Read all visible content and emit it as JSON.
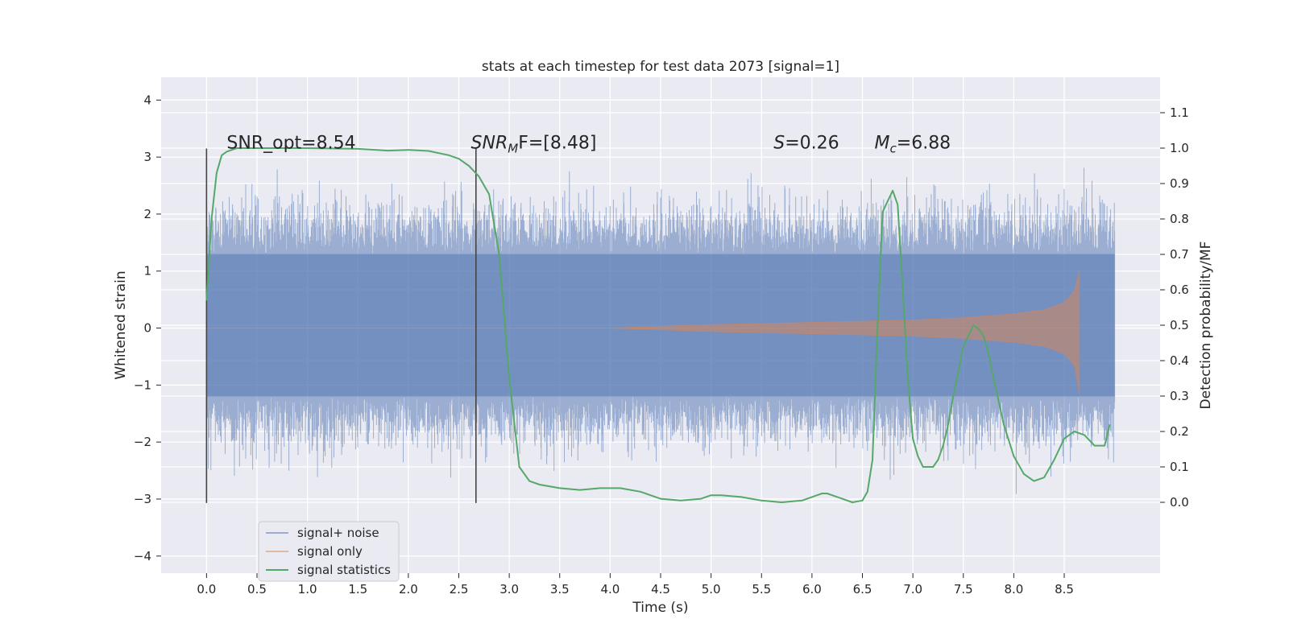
{
  "chart_data": {
    "type": "line",
    "title": "stats at each timestep for test data 2073 [signal=1]",
    "xlabel": "Time (s)",
    "ylabel_left": "Whitened strain",
    "ylabel_right": "Detection probability/MF",
    "xlim": [
      -0.45,
      9.45
    ],
    "ylim_left": [
      -4.3,
      4.4
    ],
    "ylim_right": [
      -0.2,
      1.2
    ],
    "xticks": [
      0.0,
      0.5,
      1.0,
      1.5,
      2.0,
      2.5,
      3.0,
      3.5,
      4.0,
      4.5,
      5.0,
      5.5,
      6.0,
      6.5,
      7.0,
      7.5,
      8.0,
      8.5
    ],
    "xtick_labels": [
      "0.0",
      "0.5",
      "1.0",
      "1.5",
      "2.0",
      "2.5",
      "3.0",
      "3.5",
      "4.0",
      "4.5",
      "5.0",
      "5.5",
      "6.0",
      "6.5",
      "7.0",
      "7.5",
      "8.0",
      "8.5"
    ],
    "yticks_left": [
      -4,
      -3,
      -2,
      -1,
      0,
      1,
      2,
      3,
      4
    ],
    "ytick_labels_left": [
      "−4",
      "−3",
      "−2",
      "−1",
      "0",
      "1",
      "2",
      "3",
      "4"
    ],
    "yticks_right": [
      0.0,
      0.1,
      0.2,
      0.3,
      0.4,
      0.5,
      0.6,
      0.7,
      0.8,
      0.9,
      1.0,
      1.1
    ],
    "ytick_labels_right": [
      "0.0",
      "0.1",
      "0.2",
      "0.3",
      "0.4",
      "0.5",
      "0.6",
      "0.7",
      "0.8",
      "0.9",
      "1.0",
      "1.1"
    ],
    "grid": true,
    "legend_position": "lower-left",
    "series": [
      {
        "name": "signal+ noise",
        "color": "#4c72b0",
        "axis": "left",
        "t_range": [
          0.0,
          9.0
        ],
        "envelope": {
          "core_min": -1.2,
          "core_max": 1.3,
          "max": 4.0,
          "min": -3.9
        }
      },
      {
        "name": "signal only",
        "color": "#dd8452",
        "axis": "left",
        "t_range": [
          0.0,
          8.65
        ],
        "envelope": {
          "t": [
            0.0,
            4.0,
            5.0,
            6.0,
            7.0,
            7.5,
            8.0,
            8.3,
            8.5,
            8.6,
            8.65
          ],
          "amp": [
            0.0,
            0.0,
            0.06,
            0.1,
            0.14,
            0.18,
            0.25,
            0.32,
            0.45,
            0.65,
            1.0
          ]
        }
      },
      {
        "name": "signal statistics",
        "color": "#55a868",
        "axis": "right",
        "x": [
          0.0,
          0.05,
          0.1,
          0.15,
          0.2,
          0.3,
          0.5,
          1.0,
          1.5,
          1.8,
          2.0,
          2.2,
          2.4,
          2.5,
          2.6,
          2.7,
          2.8,
          2.9,
          3.0,
          3.1,
          3.2,
          3.3,
          3.5,
          3.7,
          3.9,
          4.1,
          4.3,
          4.5,
          4.7,
          4.9,
          5.0,
          5.1,
          5.3,
          5.5,
          5.7,
          5.9,
          6.0,
          6.1,
          6.15,
          6.2,
          6.3,
          6.4,
          6.5,
          6.55,
          6.6,
          6.65,
          6.7,
          6.75,
          6.8,
          6.85,
          6.9,
          6.95,
          7.0,
          7.05,
          7.1,
          7.15,
          7.2,
          7.25,
          7.3,
          7.35,
          7.4,
          7.5,
          7.6,
          7.65,
          7.7,
          7.75,
          7.8,
          7.9,
          8.0,
          8.1,
          8.2,
          8.3,
          8.4,
          8.5,
          8.6,
          8.7,
          8.8,
          8.9,
          8.95
        ],
        "y": [
          0.57,
          0.8,
          0.93,
          0.98,
          0.99,
          1.0,
          1.0,
          1.0,
          0.998,
          0.993,
          0.995,
          0.992,
          0.98,
          0.97,
          0.95,
          0.92,
          0.87,
          0.7,
          0.35,
          0.1,
          0.06,
          0.05,
          0.04,
          0.035,
          0.04,
          0.04,
          0.03,
          0.01,
          0.005,
          0.01,
          0.02,
          0.02,
          0.015,
          0.005,
          0.0,
          0.005,
          0.015,
          0.025,
          0.025,
          0.02,
          0.01,
          0.0,
          0.005,
          0.03,
          0.12,
          0.5,
          0.82,
          0.85,
          0.88,
          0.84,
          0.6,
          0.35,
          0.18,
          0.13,
          0.1,
          0.1,
          0.1,
          0.12,
          0.16,
          0.22,
          0.3,
          0.44,
          0.5,
          0.49,
          0.47,
          0.42,
          0.35,
          0.22,
          0.13,
          0.08,
          0.06,
          0.07,
          0.12,
          0.18,
          0.2,
          0.19,
          0.16,
          0.16,
          0.22
        ]
      }
    ],
    "vlines": [
      {
        "x": 0.0,
        "y_range": [
          -3.07,
          3.15
        ]
      },
      {
        "x": 2.67,
        "y_range": [
          -3.07,
          3.15
        ]
      }
    ],
    "annotations": [
      {
        "x": 0.2,
        "y": 3.15,
        "base": "SNR_opt=8.54",
        "sub": "",
        "rest": ""
      },
      {
        "x": 2.62,
        "y": 3.15,
        "base": "SNR",
        "sub": "M",
        "rest": "F=[8.48]",
        "italic_base": true
      },
      {
        "x": 5.62,
        "y": 3.15,
        "base": "S",
        "sub": "",
        "rest": "=0.26",
        "italic_base": true
      },
      {
        "x": 6.62,
        "y": 3.15,
        "base": "M",
        "sub": "c",
        "rest": "=6.88",
        "italic_base": true
      }
    ]
  }
}
